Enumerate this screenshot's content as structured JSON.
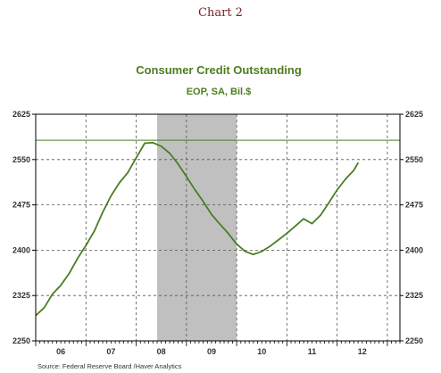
{
  "chart_data": {
    "type": "line",
    "header": "Chart 2",
    "title": "Consumer Credit Outstanding",
    "subtitle": "EOP, SA, Bil.$",
    "source": "Source:  Federal Reserve Board /Haver Analytics",
    "xlabel": "",
    "ylabel": "",
    "ylim": [
      2250,
      2625
    ],
    "yticks": [
      2250,
      2325,
      2400,
      2475,
      2550,
      2625
    ],
    "ytick_labels": [
      "2250",
      "2325",
      "2400",
      "2475",
      "2550",
      "2625"
    ],
    "xlim": [
      2005.5,
      2012.75
    ],
    "year_labels": [
      {
        "label": "06",
        "center": 2006.0
      },
      {
        "label": "07",
        "center": 2007.0
      },
      {
        "label": "08",
        "center": 2008.0
      },
      {
        "label": "09",
        "center": 2009.0
      },
      {
        "label": "10",
        "center": 2010.0
      },
      {
        "label": "11",
        "center": 2011.0
      },
      {
        "label": "12",
        "center": 2012.0
      }
    ],
    "vgrid_years": [
      2006.5,
      2007.5,
      2008.5,
      2009.5,
      2010.5,
      2011.5,
      2012.5
    ],
    "recession": {
      "start": 2007.917,
      "end": 2009.5
    },
    "reference_line": {
      "value": 2582
    },
    "grid": true,
    "legend": "none",
    "colors": {
      "line": "#4a7d23",
      "title": "#4e7d1f",
      "header": "#7a1f1f",
      "recession": "#c0c0c0",
      "grid": "#555555"
    },
    "series": [
      {
        "x": [
          2005.5,
          2005.67,
          2005.83,
          2006.0,
          2006.17,
          2006.33,
          2006.5,
          2006.67,
          2006.83,
          2007.0,
          2007.17,
          2007.33,
          2007.5,
          2007.67,
          2007.83,
          2008.0,
          2008.17,
          2008.33,
          2008.5,
          2008.67,
          2008.83,
          2009.0,
          2009.17,
          2009.33,
          2009.5,
          2009.67,
          2009.83,
          2010.0,
          2010.17,
          2010.33,
          2010.5,
          2010.67,
          2010.83,
          2011.0,
          2011.17,
          2011.33,
          2011.5,
          2011.67,
          2011.83,
          2011.92
        ],
        "values": [
          2292,
          2305,
          2327,
          2342,
          2362,
          2386,
          2408,
          2432,
          2462,
          2490,
          2512,
          2528,
          2553,
          2577,
          2578,
          2572,
          2560,
          2543,
          2522,
          2500,
          2481,
          2459,
          2443,
          2428,
          2410,
          2398,
          2393,
          2398,
          2407,
          2417,
          2428,
          2440,
          2452,
          2444,
          2458,
          2478,
          2500,
          2518,
          2532,
          2545
        ]
      }
    ]
  }
}
